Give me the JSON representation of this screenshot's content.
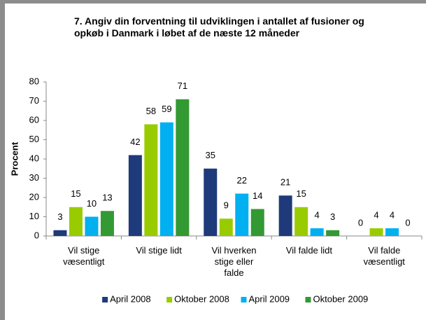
{
  "chart_data": {
    "type": "bar",
    "title": "7. Angiv din forventning til udviklingen i antallet af fusioner og opkøb i Danmark i løbet af de næste 12 måneder",
    "ylabel": "Procent",
    "categories": [
      "Vil stige væsentligt",
      "Vil stige lidt",
      "Vil hverken stige eller falde",
      "Vil falde lidt",
      "Vil falde væsentligt"
    ],
    "series": [
      {
        "name": "April 2008",
        "color": "#1f3a7a",
        "values": [
          3,
          42,
          35,
          21,
          0
        ]
      },
      {
        "name": "Oktober 2008",
        "color": "#99cc00",
        "values": [
          15,
          58,
          9,
          15,
          4
        ]
      },
      {
        "name": "April 2009",
        "color": "#00b0f0",
        "values": [
          10,
          59,
          22,
          4,
          4
        ]
      },
      {
        "name": "Oktober 2009",
        "color": "#339933",
        "values": [
          13,
          71,
          14,
          3,
          0
        ]
      }
    ],
    "ylim": [
      0,
      80
    ],
    "yticks": [
      0,
      10,
      20,
      30,
      40,
      50,
      60,
      70,
      80
    ],
    "grid": false,
    "legend": "bottom"
  }
}
